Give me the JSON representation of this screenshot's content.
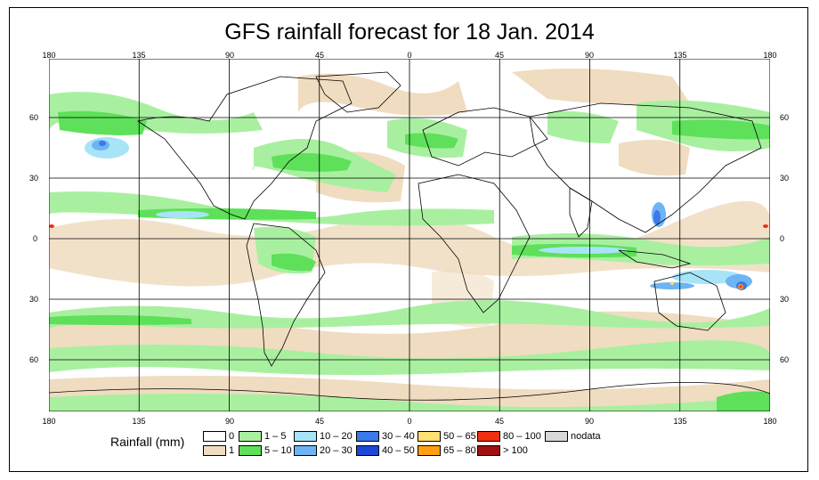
{
  "title": "GFS rainfall forecast for 18 Jan. 2014",
  "map": {
    "lon_ticks": [
      "180",
      "135",
      "90",
      "45",
      "0",
      "45",
      "90",
      "135",
      "180"
    ],
    "lat_ticks": [
      "60",
      "30",
      "0",
      "30",
      "60"
    ]
  },
  "legend": {
    "title": "Rainfall (mm)",
    "items": [
      {
        "label": "0",
        "color": "#ffffff"
      },
      {
        "label": "1",
        "color": "#f0dcc0"
      },
      {
        "label": "1 – 5",
        "color": "#a8f0a0"
      },
      {
        "label": "5 – 10",
        "color": "#5ee05a"
      },
      {
        "label": "10 – 20",
        "color": "#a8e4f8"
      },
      {
        "label": "20 – 30",
        "color": "#6cb4f4"
      },
      {
        "label": "30 – 40",
        "color": "#3c78e8"
      },
      {
        "label": "40 – 50",
        "color": "#1c48d8"
      },
      {
        "label": "50 – 65",
        "color": "#ffe070"
      },
      {
        "label": "65 – 80",
        "color": "#ffa010"
      },
      {
        "label": "80 – 100",
        "color": "#f03010"
      },
      {
        "label": "> 100",
        "color": "#a01010"
      },
      {
        "label": "nodata",
        "color": "#d8d8d8"
      }
    ]
  }
}
